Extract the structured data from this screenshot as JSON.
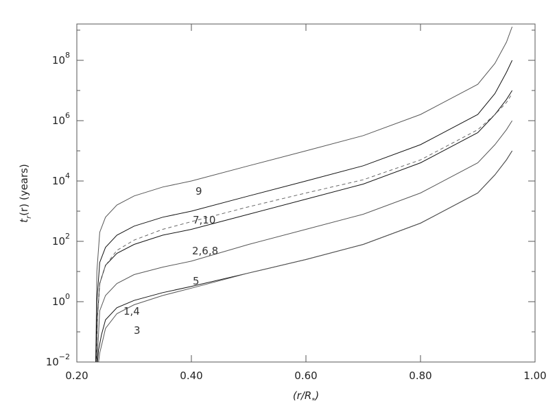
{
  "chart_data": {
    "type": "line",
    "x_label": {
      "main": "(r/R",
      "sub": "*",
      "rest": ")"
    },
    "y_label": {
      "main": "t",
      "sub": "r",
      "rest": "(r) (years)"
    },
    "log_y": true,
    "xlim": [
      0.2,
      1.0
    ],
    "xticks": [
      {
        "value": 0.2,
        "label": "0.20"
      },
      {
        "value": 0.4,
        "label": "0.40"
      },
      {
        "value": 0.6,
        "label": "0.60"
      },
      {
        "value": 0.8,
        "label": "0.80"
      },
      {
        "value": 1.0,
        "label": "1.00"
      }
    ],
    "ylim": [
      0.01,
      1600000000
    ],
    "yticks": [
      {
        "value": 0.01,
        "label": "10",
        "exponent": "−2"
      },
      {
        "value": 1,
        "label": "10",
        "exponent": "0"
      },
      {
        "value": 100,
        "label": "10",
        "exponent": "2"
      },
      {
        "value": 10000,
        "label": "10",
        "exponent": "4"
      },
      {
        "value": 1000000,
        "label": "10",
        "exponent": "6"
      },
      {
        "value": 100000000,
        "label": "10",
        "exponent": "8"
      }
    ],
    "yminor_ticks": [
      0.1,
      10,
      1000,
      100000,
      10000000,
      1000000000
    ],
    "series": [
      {
        "color": "#555555",
        "x": [
          0.233,
          0.235,
          0.24,
          0.25,
          0.27,
          0.3,
          0.35,
          0.4,
          0.5,
          0.6,
          0.7,
          0.8,
          0.9,
          0.93,
          0.95,
          0.96
        ],
        "values": [
          0.01,
          10,
          200,
          630,
          1600,
          3200,
          6300,
          10000,
          32000,
          100000,
          320000,
          1600000,
          16000000,
          79000000,
          400000000,
          1300000000
        ]
      },
      {
        "color": "#111111",
        "x": [
          0.233,
          0.235,
          0.24,
          0.25,
          0.27,
          0.3,
          0.35,
          0.4,
          0.5,
          0.6,
          0.7,
          0.8,
          0.9,
          0.93,
          0.95,
          0.96
        ],
        "values": [
          0.01,
          1,
          20,
          63,
          160,
          320,
          630,
          1000,
          3200,
          10000,
          32000,
          160000,
          1600000,
          7900000,
          40000000,
          100000000
        ]
      },
      {
        "color": "#111111",
        "x": [
          0.234,
          0.236,
          0.24,
          0.25,
          0.27,
          0.3,
          0.35,
          0.4,
          0.5,
          0.6,
          0.7,
          0.8,
          0.9,
          0.93,
          0.95,
          0.96
        ],
        "values": [
          0.01,
          0.32,
          4,
          16,
          40,
          79,
          160,
          250,
          790,
          2500,
          7900,
          40000,
          400000,
          1600000,
          5000000,
          10000000
        ]
      },
      {
        "color": "#666666",
        "dashed": true,
        "x": [
          0.234,
          0.236,
          0.24,
          0.25,
          0.27,
          0.3,
          0.35,
          0.4,
          0.5,
          0.6,
          0.7,
          0.8,
          0.9,
          0.93,
          0.95,
          0.96
        ],
        "values": [
          0.01,
          0.32,
          4,
          16,
          50,
          110,
          250,
          450,
          1400,
          4000,
          11000,
          50000,
          500000,
          1600000,
          4000000,
          7900000
        ]
      },
      {
        "color": "#555555",
        "x": [
          0.235,
          0.237,
          0.24,
          0.25,
          0.27,
          0.3,
          0.35,
          0.4,
          0.5,
          0.6,
          0.7,
          0.8,
          0.9,
          0.93,
          0.95,
          0.96
        ],
        "values": [
          0.01,
          0.04,
          0.5,
          1.6,
          4,
          7.9,
          14,
          22,
          79,
          250,
          790,
          4000,
          40000,
          160000,
          500000,
          1000000
        ]
      },
      {
        "color": "#111111",
        "x": [
          0.236,
          0.238,
          0.243,
          0.25,
          0.27,
          0.3,
          0.35,
          0.4,
          0.5,
          0.6,
          0.7,
          0.8,
          0.9,
          0.93,
          0.95,
          0.96
        ],
        "values": [
          0.01,
          0.025,
          0.079,
          0.25,
          0.63,
          1.1,
          2,
          3.2,
          8.9,
          25,
          79,
          400,
          4000,
          16000,
          50000,
          100000
        ]
      },
      {
        "color": "#555555",
        "x": [
          0.238,
          0.24,
          0.245,
          0.25,
          0.27,
          0.3,
          0.35,
          0.4,
          0.5,
          0.6,
          0.7,
          0.8,
          0.9,
          0.93,
          0.95,
          0.96
        ],
        "values": [
          0.01,
          0.02,
          0.05,
          0.13,
          0.4,
          0.79,
          1.6,
          2.8,
          8.9,
          25,
          79,
          400,
          4000,
          16000,
          50000,
          100000
        ]
      }
    ],
    "annotations": [
      "9",
      "7,10",
      "2,6,8",
      "5",
      "1,4",
      "3"
    ]
  }
}
